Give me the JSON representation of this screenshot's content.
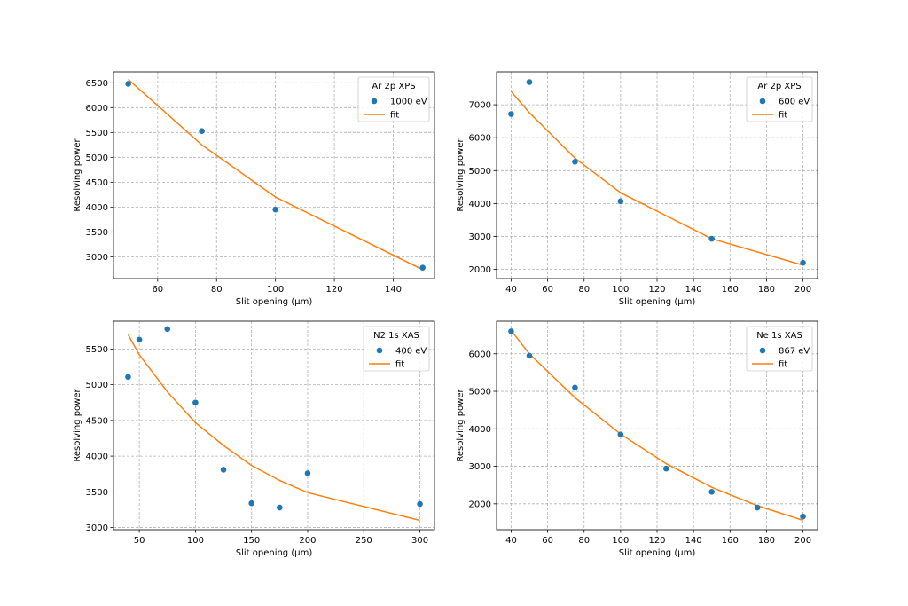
{
  "colors": {
    "points": "#1f77b4",
    "fit": "#ff7f0e",
    "grid": "#b0b0b0"
  },
  "chart_data": [
    {
      "type": "scatter",
      "xlabel": "Slit opening (µm)",
      "ylabel": "Resolving power",
      "xlim": [
        45,
        154
      ],
      "ylim": [
        2560,
        6720
      ],
      "xticks": [
        60,
        80,
        100,
        120,
        140
      ],
      "yticks": [
        3000,
        3500,
        4000,
        4500,
        5000,
        5500,
        6000,
        6500
      ],
      "grid": true,
      "legend": {
        "title": "Ar 2p XPS",
        "placement": "top-right"
      },
      "series": [
        {
          "name": "1000 eV",
          "kind": "points",
          "x": [
            50,
            75,
            100,
            150
          ],
          "y": [
            6480,
            5530,
            3950,
            2780
          ]
        },
        {
          "name": "fit",
          "kind": "line",
          "x": [
            50,
            75,
            100,
            150
          ],
          "y": [
            6570,
            5250,
            4200,
            2740
          ]
        }
      ]
    },
    {
      "type": "scatter",
      "xlabel": "Slit opening (µm)",
      "ylabel": "Resolving power",
      "xlim": [
        32,
        208
      ],
      "ylim": [
        1720,
        8000
      ],
      "xticks": [
        40,
        60,
        80,
        100,
        120,
        140,
        160,
        180,
        200
      ],
      "yticks": [
        2000,
        3000,
        4000,
        5000,
        6000,
        7000
      ],
      "grid": true,
      "legend": {
        "title": "Ar 2p XPS",
        "placement": "top-right"
      },
      "series": [
        {
          "name": "600 eV",
          "kind": "points",
          "x": [
            40,
            50,
            75,
            100,
            150,
            200
          ],
          "y": [
            6720,
            7690,
            5270,
            4070,
            2930,
            2200
          ]
        },
        {
          "name": "fit",
          "kind": "line",
          "x": [
            40,
            50,
            75,
            100,
            150,
            200
          ],
          "y": [
            7400,
            6760,
            5380,
            4330,
            2930,
            2130
          ]
        }
      ]
    },
    {
      "type": "scatter",
      "xlabel": "Slit opening (µm)",
      "ylabel": "Resolving power",
      "xlim": [
        27,
        313
      ],
      "ylim": [
        2970,
        5890
      ],
      "xticks": [
        50,
        100,
        150,
        200,
        250,
        300
      ],
      "yticks": [
        3000,
        3500,
        4000,
        4500,
        5000,
        5500
      ],
      "grid": true,
      "legend": {
        "title": "N2 1s XAS",
        "placement": "top-right"
      },
      "series": [
        {
          "name": "400 eV",
          "kind": "points",
          "x": [
            40,
            50,
            75,
            100,
            125,
            150,
            175,
            200,
            300
          ],
          "y": [
            5110,
            5630,
            5780,
            4750,
            3810,
            3340,
            3280,
            3760,
            3330
          ]
        },
        {
          "name": "fit",
          "kind": "line",
          "x": [
            40,
            50,
            75,
            100,
            125,
            150,
            175,
            200,
            300
          ],
          "y": [
            5700,
            5420,
            4900,
            4470,
            4150,
            3870,
            3660,
            3490,
            3100
          ]
        }
      ]
    },
    {
      "type": "scatter",
      "xlabel": "Slit opening (µm)",
      "ylabel": "Resolving power",
      "xlim": [
        32,
        208
      ],
      "ylim": [
        1310,
        6870
      ],
      "xticks": [
        40,
        60,
        80,
        100,
        120,
        140,
        160,
        180,
        200
      ],
      "yticks": [
        2000,
        3000,
        4000,
        5000,
        6000
      ],
      "grid": true,
      "legend": {
        "title": "Ne 1s XAS",
        "placement": "top-right"
      },
      "series": [
        {
          "name": "867 eV",
          "kind": "points",
          "x": [
            40,
            50,
            75,
            100,
            125,
            150,
            175,
            200
          ],
          "y": [
            6600,
            5950,
            5100,
            3850,
            2940,
            2320,
            1900,
            1660
          ]
        },
        {
          "name": "fit",
          "kind": "line",
          "x": [
            40,
            50,
            75,
            100,
            125,
            150,
            175,
            200
          ],
          "y": [
            6620,
            6000,
            4830,
            3860,
            3070,
            2440,
            1950,
            1560
          ]
        }
      ]
    }
  ]
}
